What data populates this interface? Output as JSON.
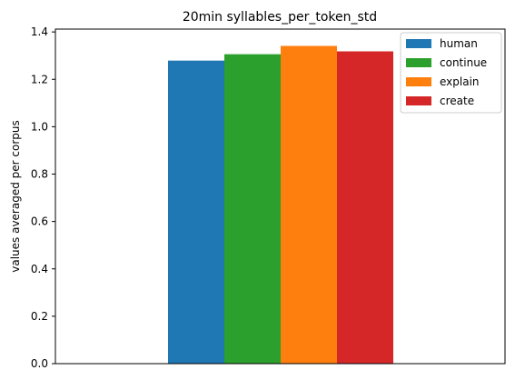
{
  "chart_data": {
    "type": "bar",
    "title": "20min syllables_per_token_std",
    "xlabel": "",
    "ylabel": "values averaged per corpus",
    "categories": [
      ""
    ],
    "series": [
      {
        "name": "human",
        "values": [
          1.279
        ],
        "color": "#1f77b4"
      },
      {
        "name": "continue",
        "values": [
          1.306
        ],
        "color": "#2ca02c"
      },
      {
        "name": "explain",
        "values": [
          1.341
        ],
        "color": "#ff7f0e"
      },
      {
        "name": "create",
        "values": [
          1.318
        ],
        "color": "#d62728"
      }
    ],
    "ylim": [
      0,
      1.412
    ],
    "yticks": [
      "0.0",
      "0.2",
      "0.4",
      "0.6",
      "0.8",
      "1.0",
      "1.2",
      "1.4"
    ],
    "grid": false,
    "legend_position": "top-right"
  }
}
